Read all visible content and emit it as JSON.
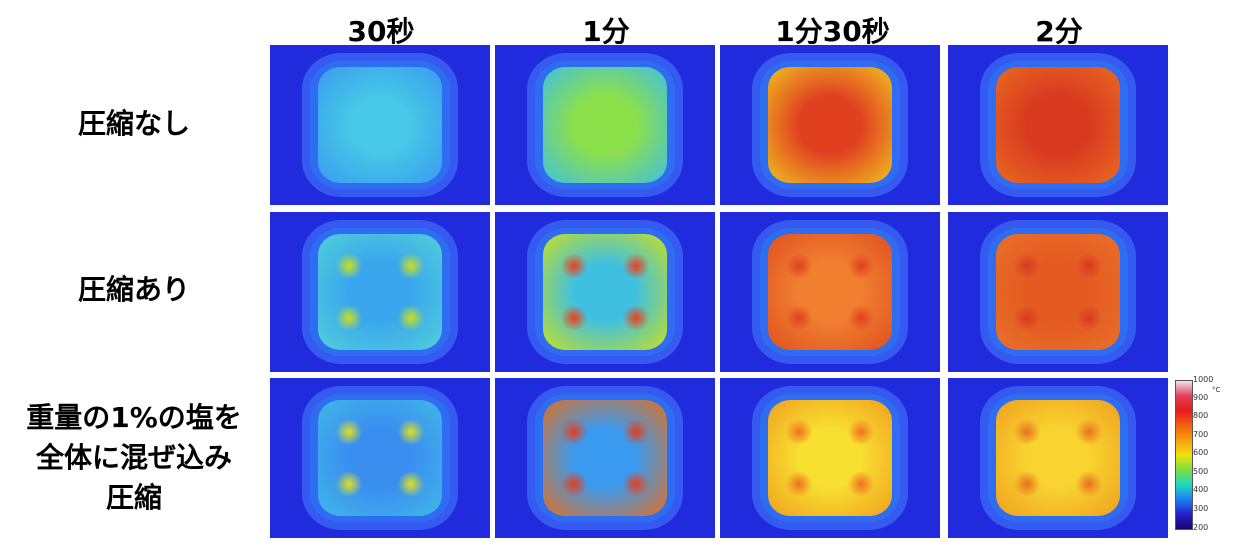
{
  "columns": [
    "30秒",
    "1分",
    "1分30秒",
    "2分"
  ],
  "rows": [
    "圧縮なし",
    "圧縮あり",
    "重量の1%の塩を\n全体に混ぜ込み\n圧縮"
  ],
  "colorbar": {
    "ticks": [
      "1000",
      "900",
      "800",
      "700",
      "600",
      "500",
      "400",
      "300",
      "200"
    ],
    "unit": "°C"
  },
  "cells": [
    [
      {
        "center": "#46c8e6",
        "edge": "#3a9af0"
      },
      {
        "center": "#8ce04a",
        "edge": "#40c0e0"
      },
      {
        "center": "#e04020",
        "edge": "#f0c020"
      },
      {
        "center": "#d83a20",
        "edge": "#e86a20"
      }
    ],
    [
      {
        "center": "#3aa6ee",
        "edge": "#50d0d8",
        "spots": "#c8e020"
      },
      {
        "center": "#40c0e0",
        "edge": "#c8e020",
        "spots": "#e84020"
      },
      {
        "center": "#f08030",
        "edge": "#e05020",
        "spots": "#e04020"
      },
      {
        "center": "#e45a20",
        "edge": "#e8702a",
        "spots": "#d83a20"
      }
    ],
    [
      {
        "center": "#3a8ef0",
        "edge": "#40b8e8",
        "spots": "#e0e020"
      },
      {
        "center": "#3a9af0",
        "edge": "#e07020",
        "spots": "#e04020"
      },
      {
        "center": "#f8e030",
        "edge": "#f0a020",
        "spots": "#f07020"
      },
      {
        "center": "#f8d430",
        "edge": "#f0a020",
        "spots": "#e87020"
      }
    ]
  ]
}
